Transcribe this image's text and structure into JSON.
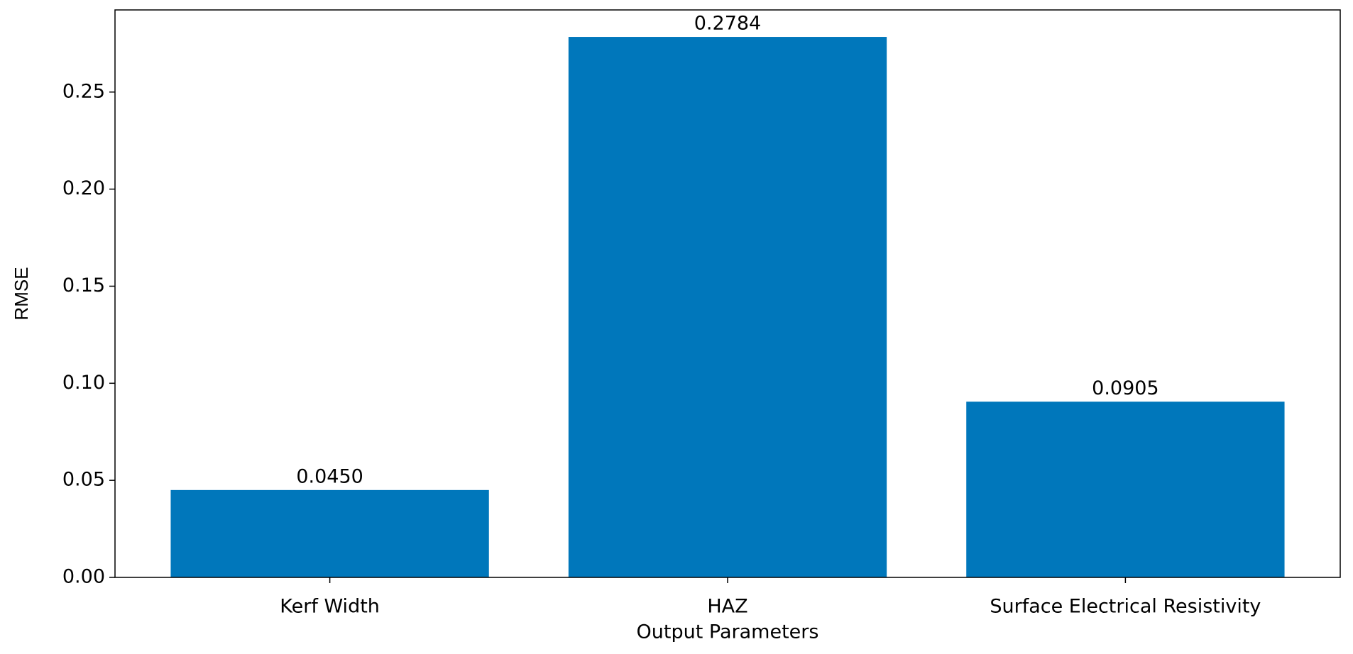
{
  "chart_data": {
    "type": "bar",
    "x_label": "Output Parameters",
    "y_label": "RMSE",
    "categories": [
      "Kerf Width",
      "HAZ",
      "Surface Electrical Resistivity"
    ],
    "values": [
      0.045,
      0.2784,
      0.0905
    ],
    "value_labels": [
      "0.0450",
      "0.2784",
      "0.0905"
    ],
    "color": "#0077bb",
    "ylim": [
      0,
      0.2923
    ],
    "yticks": [
      {
        "value": 0,
        "label": "0.00"
      },
      0.05,
      {
        "value": 0.1,
        "label": "0.10"
      },
      0.15,
      {
        "value": 0.2,
        "label": "0.20"
      },
      0.25
    ],
    "grid": false
  }
}
